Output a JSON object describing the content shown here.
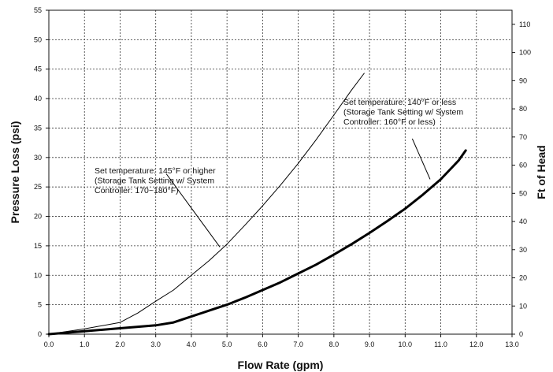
{
  "chart_data": {
    "type": "line",
    "xlabel": "Flow Rate (gpm)",
    "ylabel": "Pressure Loss (psi)",
    "y2label": "Ft of Head",
    "xlim": [
      0,
      13
    ],
    "ylim": [
      0,
      55
    ],
    "y2lim": [
      0,
      115
    ],
    "x_ticks": [
      "0.0",
      "1.0",
      "2.0",
      "3.0",
      "4.0",
      "5.0",
      "6.0",
      "7.0",
      "8.0",
      "9.0",
      "10.0",
      "11.0",
      "12.0",
      "13.0"
    ],
    "y_ticks": [
      "0",
      "5",
      "10",
      "15",
      "20",
      "25",
      "30",
      "35",
      "40",
      "45",
      "50",
      "55"
    ],
    "y2_ticks": [
      "0",
      "10",
      "20",
      "30",
      "40",
      "50",
      "60",
      "70",
      "80",
      "90",
      "100",
      "110"
    ],
    "grid": true,
    "series": [
      {
        "style": "thin",
        "x": [
          0,
          1.0,
          2.0,
          2.5,
          3.0,
          3.5,
          4.0,
          4.5,
          5.0,
          5.5,
          6.0,
          6.5,
          7.0,
          7.5,
          8.0,
          8.5,
          8.85
        ],
        "y": [
          0,
          0.9,
          2.0,
          3.6,
          5.6,
          7.5,
          10.0,
          12.5,
          15.3,
          18.5,
          21.8,
          25.3,
          29.0,
          33.0,
          37.2,
          41.5,
          44.3
        ]
      },
      {
        "style": "thick",
        "x": [
          0,
          1.0,
          2.0,
          3.0,
          3.5,
          4.0,
          4.5,
          5.0,
          5.5,
          6.0,
          6.5,
          7.0,
          7.5,
          8.0,
          8.5,
          9.0,
          9.5,
          10.0,
          10.5,
          11.0,
          11.5,
          11.7
        ],
        "y": [
          0,
          0.5,
          1.0,
          1.5,
          2.0,
          3.0,
          4.0,
          5.0,
          6.2,
          7.5,
          8.8,
          10.3,
          11.8,
          13.5,
          15.3,
          17.2,
          19.2,
          21.3,
          23.7,
          26.3,
          29.5,
          31.2
        ]
      }
    ],
    "annotations": [
      {
        "lines": [
          "Set temperature: 145°F or higher",
          "(Storage Tank Setting w/ System",
          "Controller: 170~180°F)"
        ],
        "pointer_from": [
          3.3,
          27.2
        ],
        "pointer_to": [
          4.8,
          14.8
        ]
      },
      {
        "lines": [
          "Set temperature: 140°F or less",
          "(Storage Tank Setting w/ System",
          "Controller: 160°F or less)"
        ],
        "pointer_from": [
          10.2,
          33.2
        ],
        "pointer_to": [
          10.7,
          26.3
        ]
      }
    ]
  }
}
